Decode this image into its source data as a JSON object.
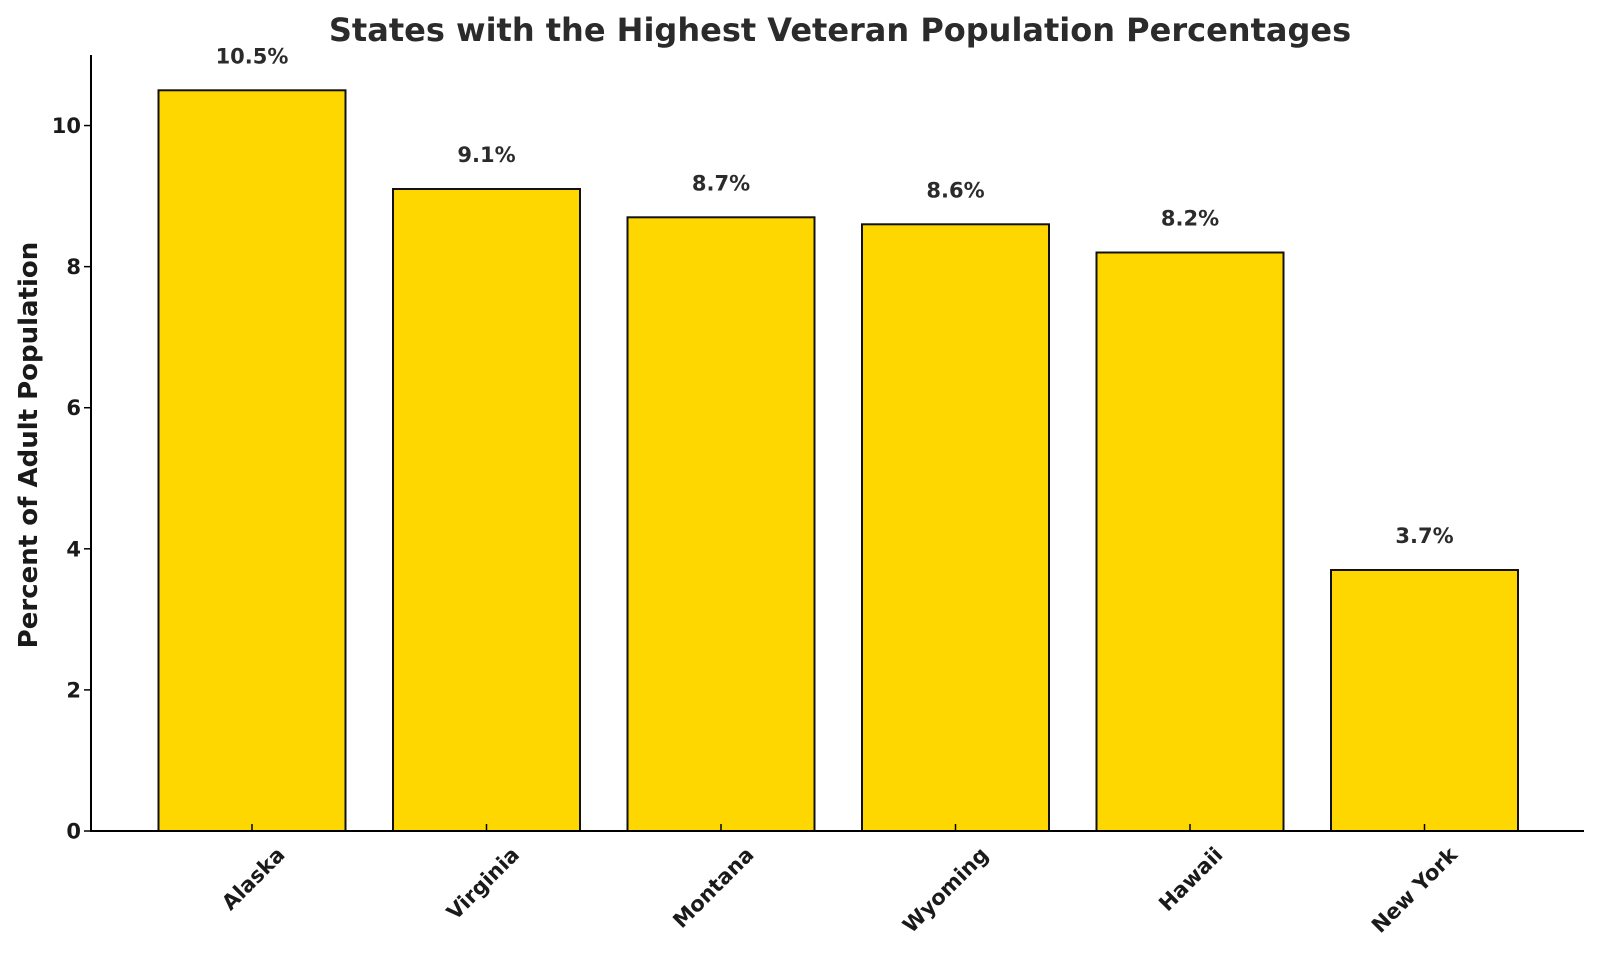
{
  "chart_data": {
    "type": "bar",
    "title": "States with the Highest Veteran Population Percentages",
    "xlabel": "",
    "ylabel": "Percent of Adult Population",
    "categories": [
      "Alaska",
      "Virginia",
      "Montana",
      "Wyoming",
      "Hawaii",
      "New York"
    ],
    "values": [
      10.5,
      9.1,
      8.7,
      8.6,
      8.2,
      3.7
    ],
    "data_labels": [
      "10.5%",
      "9.1%",
      "8.7%",
      "8.6%",
      "8.2%",
      "3.7%"
    ],
    "yticks": [
      0,
      2,
      4,
      6,
      8,
      10
    ],
    "ylim": [
      0,
      11
    ],
    "grid": false,
    "legend": "none",
    "bar_color": "#FFD700",
    "edge_color": "#111111"
  }
}
